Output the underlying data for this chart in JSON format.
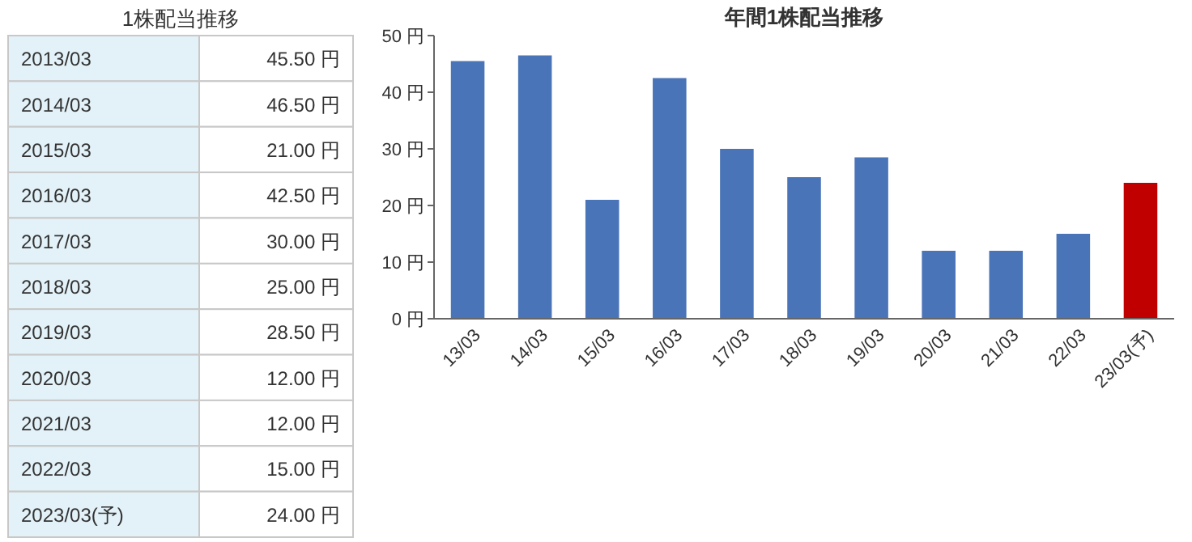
{
  "chart_data": [
    {
      "type": "other",
      "title": "1株配当推移",
      "categories": [
        "2013/03",
        "2014/03",
        "2015/03",
        "2016/03",
        "2017/03",
        "2018/03",
        "2019/03",
        "2020/03",
        "2021/03",
        "2022/03",
        "2023/03(予)"
      ],
      "values": [
        45.5,
        46.5,
        21,
        42.5,
        30,
        25,
        28.5,
        12,
        12,
        15,
        24
      ],
      "value_labels": [
        "45.50 円",
        "46.50 円",
        "21.00 円",
        "42.50 円",
        "30.00 円",
        "25.00 円",
        "28.50 円",
        "12.00 円",
        "12.00 円",
        "15.00 円",
        "24.00 円"
      ]
    },
    {
      "type": "bar",
      "title": "年間1株配当推移",
      "categories": [
        "13/03",
        "14/03",
        "15/03",
        "16/03",
        "17/03",
        "18/03",
        "19/03",
        "20/03",
        "21/03",
        "22/03",
        "23/03(予)"
      ],
      "values": [
        45.5,
        46.5,
        21,
        42.5,
        30,
        25,
        28.5,
        12,
        12,
        15,
        24
      ],
      "colors": [
        "#4a74b8",
        "#4a74b8",
        "#4a74b8",
        "#4a74b8",
        "#4a74b8",
        "#4a74b8",
        "#4a74b8",
        "#4a74b8",
        "#4a74b8",
        "#4a74b8",
        "#c00000"
      ],
      "ylim": [
        0,
        50
      ],
      "yticks": [
        {
          "value": 0,
          "label": "0 円"
        },
        {
          "value": 10,
          "label": "10 円"
        },
        {
          "value": 20,
          "label": "20 円"
        },
        {
          "value": 30,
          "label": "30 円"
        },
        {
          "value": 40,
          "label": "40 円"
        },
        {
          "value": 50,
          "label": "50 円"
        }
      ]
    }
  ]
}
